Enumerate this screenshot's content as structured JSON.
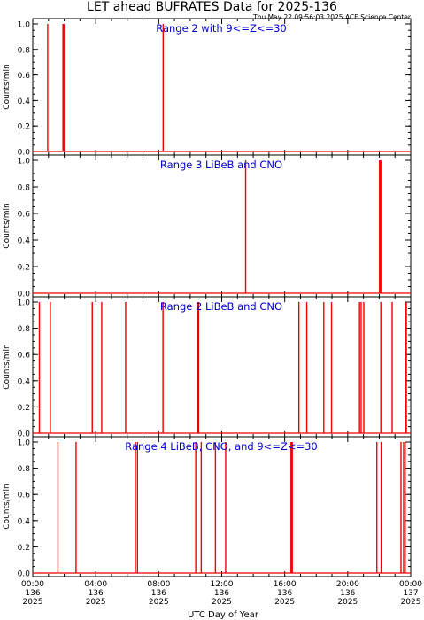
{
  "title": "LET ahead BUFRATES Data for 2025-136",
  "timestamp": "Thu May 22 09:56:03 2025 ACE Science Center",
  "xlabel": "UTC Day of Year",
  "colors": {
    "axis": "#000000",
    "series": "#ee0000",
    "panel_title": "#0000cc",
    "background": "#ffffff"
  },
  "x_ticks": [
    {
      "time": "00:00",
      "doy": "136",
      "year": "2025",
      "hour": 0
    },
    {
      "time": "04:00",
      "doy": "136",
      "year": "2025",
      "hour": 4
    },
    {
      "time": "08:00",
      "doy": "136",
      "year": "2025",
      "hour": 8
    },
    {
      "time": "12:00",
      "doy": "136",
      "year": "2025",
      "hour": 12
    },
    {
      "time": "16:00",
      "doy": "136",
      "year": "2025",
      "hour": 16
    },
    {
      "time": "20:00",
      "doy": "136",
      "year": "2025",
      "hour": 20
    },
    {
      "time": "00:00",
      "doy": "137",
      "year": "2025",
      "hour": 24
    }
  ],
  "chart_data": [
    {
      "type": "line",
      "title": "Range 2 with 9<=Z<=30",
      "ylabel": "Counts/min",
      "xlim": [
        0,
        24
      ],
      "ylim": [
        0,
        1.0
      ],
      "yticks": [
        "0.0",
        "0.2",
        "0.4",
        "0.6",
        "0.8",
        "1.0"
      ],
      "spikes_hours": [
        0.95,
        1.92,
        1.98,
        8.28
      ]
    },
    {
      "type": "line",
      "title": "Range 3 LiBeB and CNO",
      "ylabel": "Counts/min",
      "xlim": [
        0,
        24
      ],
      "ylim": [
        0,
        1.0
      ],
      "yticks": [
        "0.0",
        "0.2",
        "0.4",
        "0.6",
        "0.8",
        "1.0"
      ],
      "spikes_hours": [
        13.52,
        22.02,
        22.1
      ]
    },
    {
      "type": "line",
      "title": "Range 2 LiBeB and CNO",
      "ylabel": "Counts/min",
      "xlim": [
        0,
        24
      ],
      "ylim": [
        0,
        1.0
      ],
      "yticks": [
        "0.0",
        "0.2",
        "0.4",
        "0.6",
        "0.8",
        "1.0"
      ],
      "spikes_hours": [
        0.42,
        1.12,
        3.78,
        4.38,
        5.9,
        8.27,
        10.47,
        10.53,
        16.9,
        17.4,
        18.48,
        18.97,
        20.75,
        20.85,
        21.02,
        22.1,
        22.82,
        23.68,
        23.72
      ]
    },
    {
      "type": "line",
      "title": "Range 4 LiBeB, CNO, and 9<=Z<=30",
      "ylabel": "Counts/min",
      "xlim": [
        0,
        24
      ],
      "ylim": [
        0,
        1.0
      ],
      "yticks": [
        "0.0",
        "0.2",
        "0.4",
        "0.6",
        "0.8",
        "1.0"
      ],
      "spikes_hours": [
        1.6,
        2.75,
        6.52,
        6.65,
        10.35,
        10.7,
        11.6,
        12.25,
        16.4,
        16.48,
        21.85,
        22.12,
        23.38,
        23.55,
        23.65
      ]
    }
  ]
}
